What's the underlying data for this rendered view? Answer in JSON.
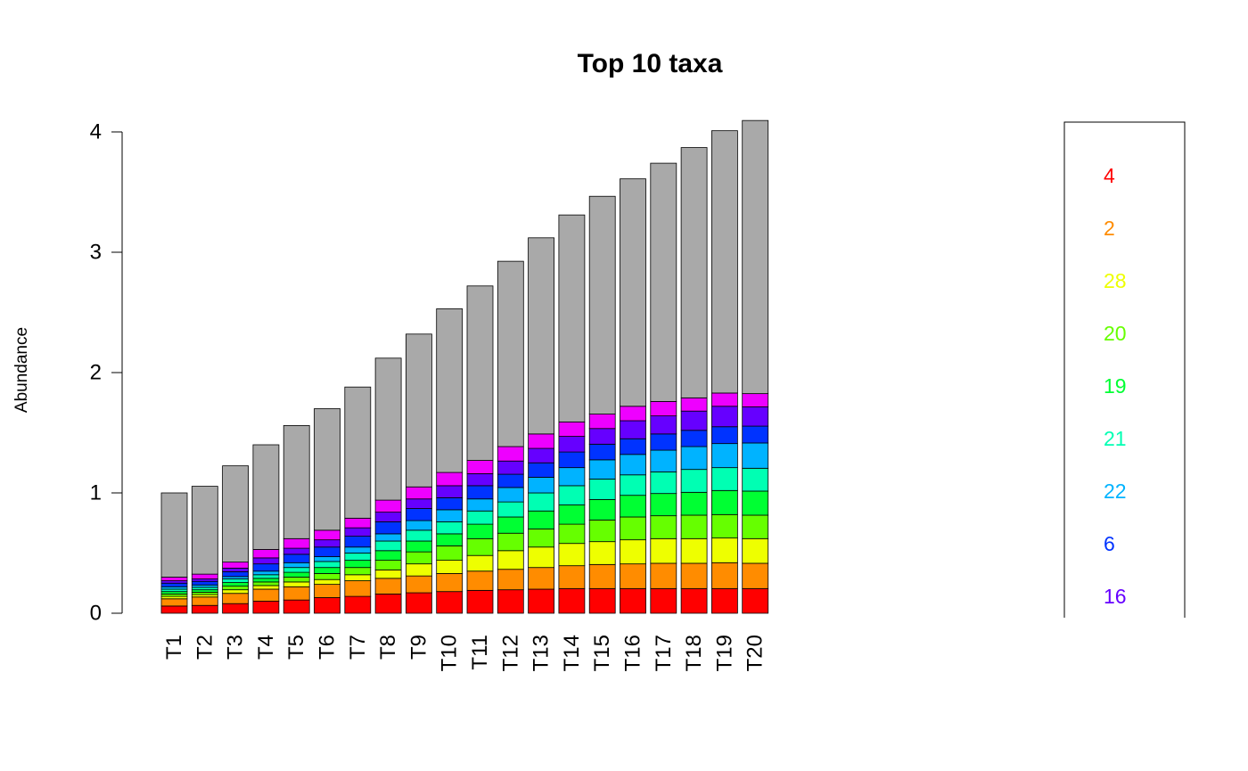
{
  "chart_data": {
    "type": "bar",
    "stacked": true,
    "title": "Top 10 taxa",
    "xlabel": "",
    "ylabel": "Abundance",
    "ylim": [
      0,
      4
    ],
    "yticks": [
      0,
      1,
      2,
      3,
      4
    ],
    "grid": false,
    "legend_position": "right",
    "categories": [
      "T1",
      "T2",
      "T3",
      "T4",
      "T5",
      "T6",
      "T7",
      "T8",
      "T9",
      "T10",
      "T11",
      "T12",
      "T13",
      "T14",
      "T15",
      "T16",
      "T17",
      "T18",
      "T19",
      "T20"
    ],
    "series": [
      {
        "name": "4",
        "color": "#FF0000",
        "values": [
          0.06,
          0.065,
          0.08,
          0.1,
          0.11,
          0.13,
          0.14,
          0.16,
          0.17,
          0.18,
          0.19,
          0.195,
          0.2,
          0.205,
          0.205,
          0.205,
          0.205,
          0.205,
          0.205,
          0.205
        ]
      },
      {
        "name": "2",
        "color": "#FF8C00",
        "values": [
          0.06,
          0.07,
          0.085,
          0.1,
          0.11,
          0.11,
          0.13,
          0.13,
          0.14,
          0.15,
          0.16,
          0.17,
          0.18,
          0.19,
          0.2,
          0.205,
          0.21,
          0.21,
          0.215,
          0.21
        ]
      },
      {
        "name": "28",
        "color": "#EEFF00",
        "values": [
          0.02,
          0.02,
          0.03,
          0.03,
          0.04,
          0.04,
          0.05,
          0.07,
          0.1,
          0.11,
          0.13,
          0.155,
          0.17,
          0.185,
          0.19,
          0.2,
          0.205,
          0.205,
          0.205,
          0.205
        ]
      },
      {
        "name": "20",
        "color": "#66FF00",
        "values": [
          0.02,
          0.02,
          0.03,
          0.03,
          0.04,
          0.05,
          0.06,
          0.08,
          0.1,
          0.12,
          0.14,
          0.145,
          0.15,
          0.16,
          0.18,
          0.19,
          0.19,
          0.195,
          0.195,
          0.195
        ]
      },
      {
        "name": "19",
        "color": "#00FF33",
        "values": [
          0.02,
          0.02,
          0.03,
          0.03,
          0.04,
          0.05,
          0.06,
          0.08,
          0.09,
          0.1,
          0.12,
          0.135,
          0.15,
          0.16,
          0.17,
          0.18,
          0.185,
          0.19,
          0.2,
          0.2
        ]
      },
      {
        "name": "21",
        "color": "#00FFB3",
        "values": [
          0.02,
          0.02,
          0.03,
          0.03,
          0.04,
          0.05,
          0.06,
          0.08,
          0.09,
          0.1,
          0.11,
          0.125,
          0.15,
          0.16,
          0.17,
          0.17,
          0.18,
          0.19,
          0.19,
          0.19
        ]
      },
      {
        "name": "22",
        "color": "#00B3FF",
        "values": [
          0.02,
          0.02,
          0.02,
          0.03,
          0.04,
          0.04,
          0.05,
          0.06,
          0.08,
          0.1,
          0.1,
          0.12,
          0.13,
          0.15,
          0.16,
          0.17,
          0.18,
          0.19,
          0.2,
          0.21
        ]
      },
      {
        "name": "6",
        "color": "#0033FF",
        "values": [
          0.03,
          0.03,
          0.04,
          0.06,
          0.07,
          0.08,
          0.09,
          0.1,
          0.1,
          0.1,
          0.11,
          0.11,
          0.12,
          0.13,
          0.13,
          0.13,
          0.135,
          0.135,
          0.14,
          0.14
        ]
      },
      {
        "name": "16",
        "color": "#6600FF",
        "values": [
          0.02,
          0.02,
          0.03,
          0.05,
          0.05,
          0.06,
          0.07,
          0.08,
          0.08,
          0.1,
          0.1,
          0.11,
          0.12,
          0.13,
          0.13,
          0.15,
          0.15,
          0.16,
          0.17,
          0.16
        ]
      },
      {
        "name": "",
        "color": "#EE00FF",
        "values": [
          0.03,
          0.04,
          0.05,
          0.07,
          0.08,
          0.08,
          0.08,
          0.1,
          0.1,
          0.11,
          0.11,
          0.12,
          0.12,
          0.12,
          0.12,
          0.12,
          0.12,
          0.11,
          0.11,
          0.11
        ]
      },
      {
        "name": "",
        "color": "#A9A9A9",
        "values": [
          0.7,
          0.73,
          0.8,
          0.87,
          0.94,
          1.01,
          1.09,
          1.18,
          1.27,
          1.36,
          1.45,
          1.54,
          1.63,
          1.72,
          1.81,
          1.89,
          1.98,
          2.08,
          2.18,
          2.27
        ]
      }
    ]
  }
}
